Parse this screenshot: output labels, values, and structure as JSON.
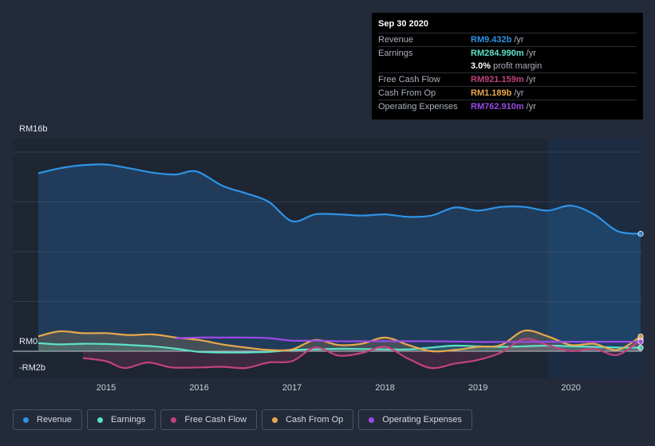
{
  "chart_data": {
    "type": "area",
    "title": "",
    "xlabel": "",
    "ylabel": "",
    "y_tick_labels": [
      "RM16b",
      "RM0",
      "-RM2b"
    ],
    "ylim": [
      -2,
      16
    ],
    "x_tick_labels": [
      "2015",
      "2016",
      "2017",
      "2018",
      "2019",
      "2020"
    ],
    "x_ticks": [
      2015,
      2016,
      2017,
      2018,
      2019,
      2020
    ],
    "xlim": [
      2014.27,
      2020.75
    ],
    "forecast_region_start": 2019.75,
    "series": [
      {
        "name": "Revenue",
        "color": "#2e93e6",
        "filled": true,
        "points": [
          [
            2014.27,
            14.3
          ],
          [
            2014.5,
            14.7
          ],
          [
            2014.75,
            14.95
          ],
          [
            2015.0,
            15.0
          ],
          [
            2015.25,
            14.7
          ],
          [
            2015.5,
            14.35
          ],
          [
            2015.75,
            14.2
          ],
          [
            2015.97,
            14.45
          ],
          [
            2016.25,
            13.3
          ],
          [
            2016.5,
            12.7
          ],
          [
            2016.75,
            12.0
          ],
          [
            2017.0,
            10.45
          ],
          [
            2017.25,
            11.0
          ],
          [
            2017.5,
            11.0
          ],
          [
            2017.75,
            10.9
          ],
          [
            2018.0,
            11.0
          ],
          [
            2018.25,
            10.8
          ],
          [
            2018.5,
            10.9
          ],
          [
            2018.75,
            11.55
          ],
          [
            2019.0,
            11.3
          ],
          [
            2019.25,
            11.6
          ],
          [
            2019.5,
            11.6
          ],
          [
            2019.75,
            11.3
          ],
          [
            2020.0,
            11.7
          ],
          [
            2020.25,
            11.0
          ],
          [
            2020.5,
            9.65
          ],
          [
            2020.75,
            9.432
          ]
        ]
      },
      {
        "name": "Earnings",
        "color": "#5ce1c9",
        "filled": true,
        "points": [
          [
            2014.27,
            0.65
          ],
          [
            2014.5,
            0.55
          ],
          [
            2014.75,
            0.6
          ],
          [
            2015.0,
            0.58
          ],
          [
            2015.25,
            0.5
          ],
          [
            2015.5,
            0.4
          ],
          [
            2015.75,
            0.2
          ],
          [
            2016.0,
            -0.05
          ],
          [
            2016.25,
            -0.1
          ],
          [
            2016.5,
            -0.1
          ],
          [
            2016.75,
            -0.05
          ],
          [
            2017.0,
            0.1
          ],
          [
            2017.25,
            0.15
          ],
          [
            2017.5,
            0.2
          ],
          [
            2017.75,
            0.18
          ],
          [
            2018.0,
            0.15
          ],
          [
            2018.25,
            0.15
          ],
          [
            2018.5,
            0.3
          ],
          [
            2018.75,
            0.45
          ],
          [
            2019.0,
            0.4
          ],
          [
            2019.25,
            0.35
          ],
          [
            2019.5,
            0.4
          ],
          [
            2019.75,
            0.45
          ],
          [
            2020.0,
            0.4
          ],
          [
            2020.25,
            0.35
          ],
          [
            2020.5,
            0.3
          ],
          [
            2020.75,
            0.285
          ]
        ]
      },
      {
        "name": "Free Cash Flow",
        "color": "#c2427f",
        "filled": true,
        "points": [
          [
            2014.75,
            -0.55
          ],
          [
            2015.0,
            -0.8
          ],
          [
            2015.2,
            -1.35
          ],
          [
            2015.45,
            -0.9
          ],
          [
            2015.7,
            -1.3
          ],
          [
            2016.0,
            -1.3
          ],
          [
            2016.25,
            -1.25
          ],
          [
            2016.5,
            -1.35
          ],
          [
            2016.75,
            -0.9
          ],
          [
            2017.0,
            -0.8
          ],
          [
            2017.25,
            0.3
          ],
          [
            2017.5,
            -0.35
          ],
          [
            2017.75,
            -0.15
          ],
          [
            2018.0,
            0.35
          ],
          [
            2018.25,
            -0.6
          ],
          [
            2018.5,
            -1.35
          ],
          [
            2018.75,
            -1.0
          ],
          [
            2019.0,
            -0.7
          ],
          [
            2019.25,
            -0.1
          ],
          [
            2019.5,
            1.0
          ],
          [
            2019.75,
            0.5
          ],
          [
            2020.0,
            0.0
          ],
          [
            2020.25,
            0.2
          ],
          [
            2020.5,
            -0.3
          ],
          [
            2020.75,
            0.921
          ]
        ]
      },
      {
        "name": "Cash From Op",
        "color": "#e9a84c",
        "filled": true,
        "points": [
          [
            2014.27,
            1.2
          ],
          [
            2014.5,
            1.6
          ],
          [
            2014.75,
            1.45
          ],
          [
            2015.0,
            1.45
          ],
          [
            2015.25,
            1.3
          ],
          [
            2015.5,
            1.35
          ],
          [
            2015.75,
            1.1
          ],
          [
            2016.0,
            0.9
          ],
          [
            2016.25,
            0.55
          ],
          [
            2016.5,
            0.3
          ],
          [
            2016.75,
            0.1
          ],
          [
            2017.0,
            0.15
          ],
          [
            2017.25,
            0.9
          ],
          [
            2017.5,
            0.5
          ],
          [
            2017.75,
            0.6
          ],
          [
            2018.0,
            1.1
          ],
          [
            2018.25,
            0.5
          ],
          [
            2018.5,
            0.0
          ],
          [
            2018.75,
            0.1
          ],
          [
            2019.0,
            0.35
          ],
          [
            2019.25,
            0.5
          ],
          [
            2019.5,
            1.65
          ],
          [
            2019.75,
            1.2
          ],
          [
            2020.0,
            0.5
          ],
          [
            2020.25,
            0.6
          ],
          [
            2020.5,
            0.1
          ],
          [
            2020.75,
            1.189
          ]
        ]
      },
      {
        "name": "Operating Expenses",
        "color": "#9a4be6",
        "filled": false,
        "points": [
          [
            2015.75,
            1.05
          ],
          [
            2016.0,
            1.1
          ],
          [
            2016.25,
            1.1
          ],
          [
            2016.5,
            1.1
          ],
          [
            2016.75,
            1.05
          ],
          [
            2017.0,
            0.85
          ],
          [
            2017.25,
            0.85
          ],
          [
            2017.5,
            0.8
          ],
          [
            2017.75,
            0.8
          ],
          [
            2018.0,
            0.8
          ],
          [
            2018.25,
            0.8
          ],
          [
            2018.5,
            0.8
          ],
          [
            2018.75,
            0.78
          ],
          [
            2019.0,
            0.75
          ],
          [
            2019.25,
            0.75
          ],
          [
            2019.5,
            0.75
          ],
          [
            2019.75,
            0.76
          ],
          [
            2020.0,
            0.76
          ],
          [
            2020.25,
            0.76
          ],
          [
            2020.5,
            0.76
          ],
          [
            2020.75,
            0.763
          ]
        ]
      }
    ]
  },
  "tooltip": {
    "date": "Sep 30 2020",
    "rows": [
      {
        "label": "Revenue",
        "value": "RM9.432b",
        "unit": "/yr",
        "color": "#2e93e6"
      },
      {
        "label": "Earnings",
        "value": "RM284.990m",
        "unit": "/yr",
        "color": "#5ce1c9"
      },
      {
        "label": "",
        "value": "3.0%",
        "unit": "profit margin",
        "color": "#ffffff"
      },
      {
        "label": "Free Cash Flow",
        "value": "RM921.159m",
        "unit": "/yr",
        "color": "#c2427f"
      },
      {
        "label": "Cash From Op",
        "value": "RM1.189b",
        "unit": "/yr",
        "color": "#e9a84c"
      },
      {
        "label": "Operating Expenses",
        "value": "RM762.910m",
        "unit": "/yr",
        "color": "#9a4be6"
      }
    ]
  },
  "legend": [
    {
      "label": "Revenue",
      "color": "#2e93e6"
    },
    {
      "label": "Earnings",
      "color": "#5ce1c9"
    },
    {
      "label": "Free Cash Flow",
      "color": "#c2427f"
    },
    {
      "label": "Cash From Op",
      "color": "#e9a84c"
    },
    {
      "label": "Operating Expenses",
      "color": "#9a4be6"
    }
  ]
}
